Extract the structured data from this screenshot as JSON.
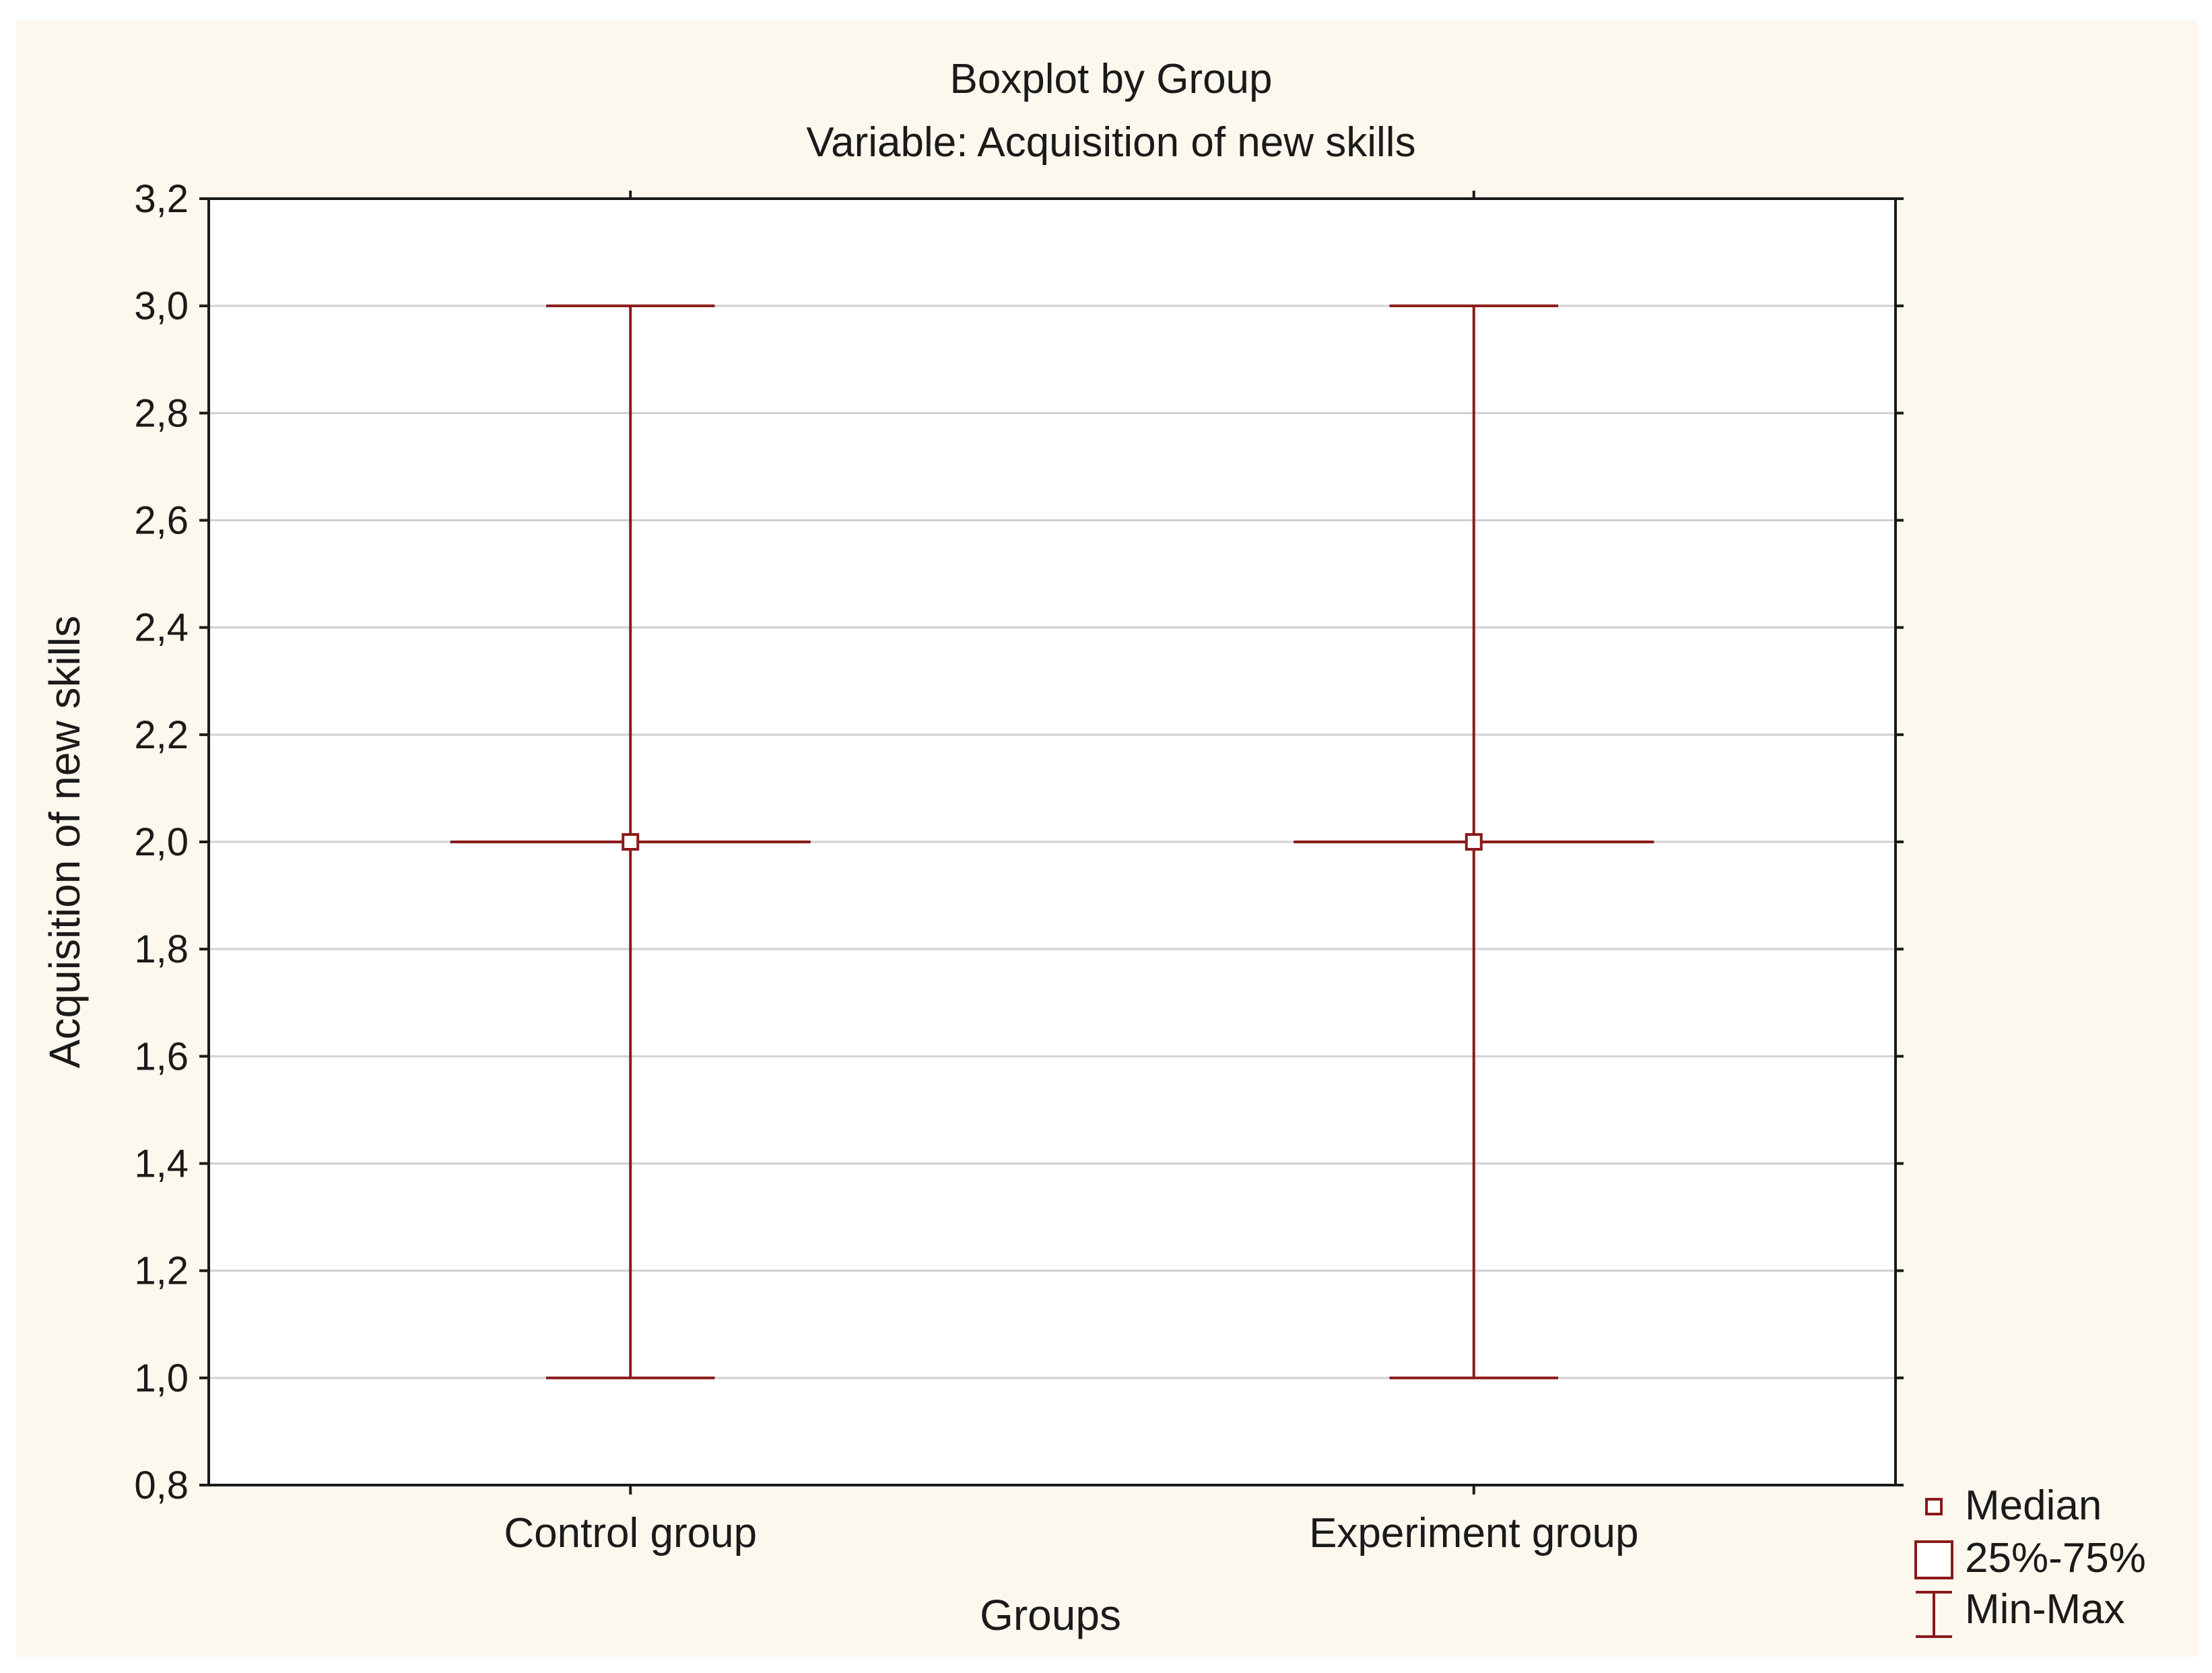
{
  "chart_data": {
    "type": "boxplot",
    "title": "Boxplot by Group",
    "subtitle": "Variable: Acquisition of new skills",
    "xlabel": "Groups",
    "ylabel": "Acquisition of new skills",
    "categories": [
      "Control group",
      "Experiment group"
    ],
    "series": [
      {
        "name": "Control group",
        "min": 1.0,
        "q1": 2.0,
        "median": 2.0,
        "q3": 2.0,
        "max": 3.0
      },
      {
        "name": "Experiment group",
        "min": 1.0,
        "q1": 2.0,
        "median": 2.0,
        "q3": 2.0,
        "max": 3.0
      }
    ],
    "ylim": [
      0.8,
      3.2
    ],
    "yticks": [
      0.8,
      1.0,
      1.2,
      1.4,
      1.6,
      1.8,
      2.0,
      2.2,
      2.4,
      2.6,
      2.8,
      3.0,
      3.2
    ],
    "ytick_labels": [
      "0,8",
      "1,0",
      "1,2",
      "1,4",
      "1,6",
      "1,8",
      "2,0",
      "2,2",
      "2,4",
      "2,6",
      "2,8",
      "3,0",
      "3,2"
    ],
    "grid": true,
    "legend": {
      "position": "bottom-right",
      "entries": [
        "Median",
        "25%-75%",
        "Min-Max"
      ]
    },
    "colors": {
      "plot_color": "#8b1a1a",
      "grid": "#d0d0d0",
      "page_background": "#fdf8ee",
      "plot_background": "#ffffff"
    }
  }
}
